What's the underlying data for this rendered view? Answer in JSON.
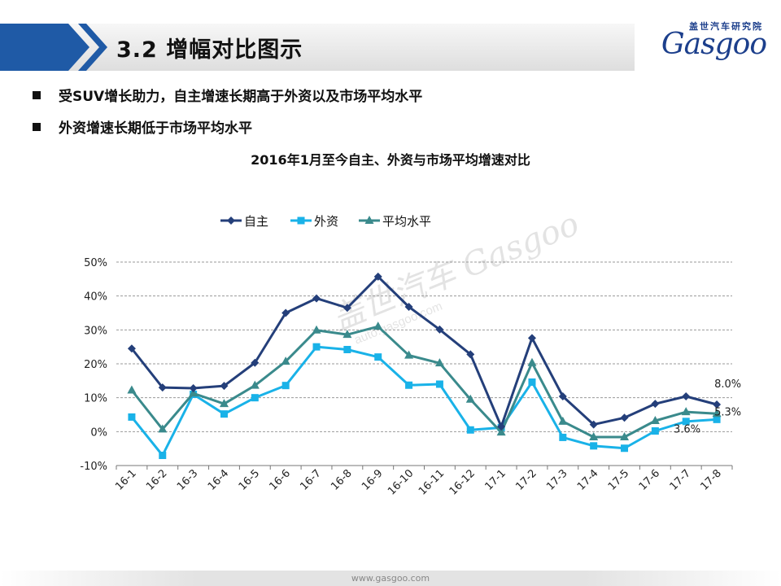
{
  "slide": {
    "title": "3.2 增幅对比图示",
    "bullets": [
      "受SUV增长助力，自主增速长期高于外资以及市场平均水平",
      "外资增速长期低于市场平均水平"
    ],
    "logo_cn": "盖世汽车研究院",
    "logo_en": "Gasgoo",
    "watermark_logo": "盖世汽车 Gasgoo",
    "watermark_url": "auto.gasgoo.com",
    "footer_url": "www.gasgoo.com"
  },
  "colors": {
    "自主": "#243f7a",
    "外资": "#19b2e8",
    "平均水平": "#3a8a8c",
    "grid": "#9a9a9a",
    "header_accent": "#1f5aa6"
  },
  "chart_data": {
    "type": "line",
    "title": "2016年1月至今自主、外资与市场平均增速对比",
    "categories": [
      "16-1",
      "16-2",
      "16-3",
      "16-4",
      "16-5",
      "16-6",
      "16-7",
      "16-8",
      "16-9",
      "16-10",
      "16-11",
      "16-12",
      "17-1",
      "17-2",
      "17-3",
      "17-4",
      "17-5",
      "17-6",
      "17-7",
      "17-8"
    ],
    "y_ticks": [
      "50%",
      "40%",
      "30%",
      "20%",
      "10%",
      "0%",
      "-10%"
    ],
    "ylim": [
      -10,
      50
    ],
    "ytick_step": 10,
    "grid": "horizontal dashed",
    "legend": "top-left",
    "xlabel": "",
    "ylabel": "",
    "series": [
      {
        "name": "自主",
        "marker": "diamond",
        "values": [
          24.5,
          13.0,
          12.8,
          13.5,
          20.3,
          35.0,
          39.3,
          36.5,
          45.7,
          36.8,
          30.1,
          22.8,
          1.5,
          27.6,
          10.4,
          2.1,
          4.1,
          8.2,
          10.4,
          8.0
        ],
        "end_label": "8.0%"
      },
      {
        "name": "外资",
        "marker": "square",
        "values": [
          4.3,
          -7.0,
          11.0,
          5.2,
          10.0,
          13.6,
          25.0,
          24.2,
          22.0,
          13.7,
          14.0,
          0.5,
          1.2,
          14.6,
          -1.7,
          -4.2,
          -4.9,
          0.2,
          3.0,
          3.6
        ],
        "end_label": "3.6%"
      },
      {
        "name": "平均水平",
        "marker": "triangle",
        "values": [
          12.2,
          0.7,
          11.3,
          8.2,
          13.6,
          20.7,
          29.9,
          28.6,
          31.0,
          22.5,
          20.2,
          9.5,
          -0.2,
          20.3,
          3.0,
          -1.6,
          -1.6,
          3.2,
          5.8,
          5.3
        ],
        "end_label": "5.3%"
      }
    ]
  }
}
